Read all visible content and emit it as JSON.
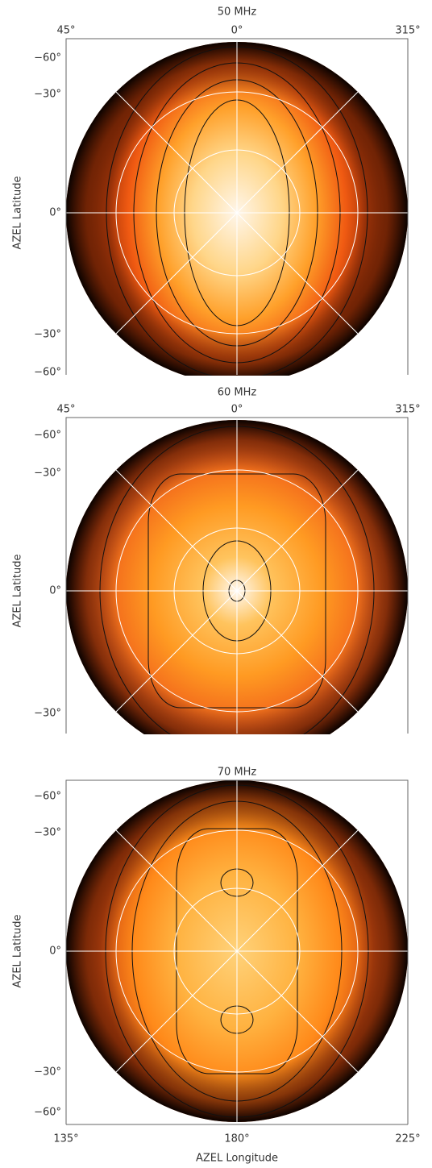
{
  "panels": [
    {
      "title": "50 MHz",
      "top_labels": [
        "45°",
        "0°",
        "315°"
      ],
      "left_labels": [
        "−60°",
        "−30°",
        "0°",
        "−30°",
        "−60°"
      ],
      "y_axis_label": "AZEL Latitude"
    },
    {
      "title": "60 MHz",
      "top_labels": [
        "45°",
        "0°",
        "315°"
      ],
      "left_labels": [
        "−60°",
        "−30°",
        "0°",
        "−30°"
      ],
      "y_axis_label": "AZEL Latitude"
    },
    {
      "title": "70 MHz",
      "left_labels": [
        "−60°",
        "−30°",
        "0°",
        "−30°",
        "−60°"
      ],
      "y_axis_label": "AZEL Latitude",
      "bottom_labels": [
        "135°",
        "180°",
        "225°"
      ],
      "x_axis_label": "AZEL Longitude"
    }
  ]
}
